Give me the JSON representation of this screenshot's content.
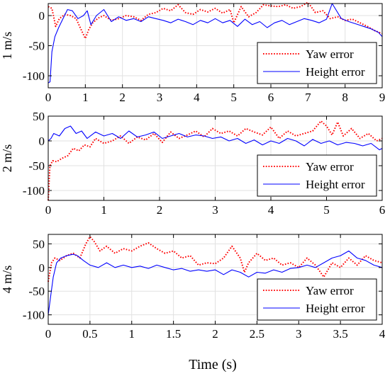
{
  "figure": {
    "xlabel": "Time (s)"
  },
  "chart_data": [
    {
      "type": "line",
      "ylabel": "1 m/s",
      "xlim": [
        0,
        9
      ],
      "ylim": [
        -120,
        20
      ],
      "xticks": [
        0,
        1,
        2,
        3,
        4,
        5,
        6,
        7,
        8,
        9
      ],
      "xtick_labels": [
        "0",
        "1",
        "2",
        "3",
        "4",
        "5",
        "6",
        "7",
        "8",
        "9"
      ],
      "yticks": [
        0,
        -50,
        -100
      ],
      "ytick_labels": [
        "0",
        "-50",
        "-100"
      ],
      "grid": true,
      "legend_position": "bottom-right",
      "series": [
        {
          "name": "Yaw error",
          "color": "#ff0000",
          "dash": "dotted",
          "x": [
            0,
            0.1,
            0.2,
            0.3,
            0.45,
            0.6,
            0.75,
            0.9,
            1.0,
            1.1,
            1.2,
            1.35,
            1.5,
            1.7,
            1.9,
            2.1,
            2.3,
            2.5,
            2.7,
            2.9,
            3.1,
            3.3,
            3.5,
            3.7,
            3.9,
            4.1,
            4.3,
            4.5,
            4.7,
            4.9,
            5.0,
            5.2,
            5.4,
            5.6,
            5.8,
            6.0,
            6.2,
            6.4,
            6.6,
            6.8,
            7.0,
            7.2,
            7.4,
            7.6,
            7.8,
            8.0,
            8.2,
            8.4,
            8.6,
            8.8,
            9.0
          ],
          "y": [
            15,
            12,
            -18,
            -5,
            2,
            0,
            -5,
            -25,
            -38,
            -22,
            -12,
            -4,
            0,
            -8,
            -5,
            0,
            -2,
            -8,
            2,
            5,
            12,
            8,
            18,
            5,
            2,
            10,
            6,
            12,
            4,
            10,
            -12,
            15,
            -2,
            5,
            18,
            16,
            15,
            18,
            12,
            15,
            22,
            5,
            8,
            -5,
            -2,
            -8,
            -6,
            -12,
            -18,
            -25,
            -30
          ]
        },
        {
          "name": "Height error",
          "color": "#0000ff",
          "dash": "solid",
          "x": [
            0,
            0.05,
            0.1,
            0.18,
            0.28,
            0.4,
            0.52,
            0.65,
            0.8,
            0.95,
            1.05,
            1.15,
            1.3,
            1.5,
            1.7,
            1.9,
            2.1,
            2.3,
            2.5,
            2.7,
            2.9,
            3.1,
            3.3,
            3.5,
            3.7,
            3.9,
            4.1,
            4.3,
            4.5,
            4.7,
            4.9,
            5.1,
            5.3,
            5.5,
            5.7,
            5.9,
            6.1,
            6.3,
            6.5,
            6.7,
            6.9,
            7.1,
            7.3,
            7.5,
            7.65,
            7.75,
            7.9,
            8.1,
            8.3,
            8.5,
            8.7,
            8.9,
            9.0
          ],
          "y": [
            -112,
            -110,
            -60,
            -35,
            -20,
            -5,
            10,
            8,
            -5,
            0,
            8,
            -15,
            0,
            10,
            -10,
            -2,
            -8,
            -5,
            -10,
            -2,
            -5,
            -8,
            -12,
            -6,
            -10,
            -15,
            -8,
            -12,
            -5,
            -12,
            -8,
            -18,
            -6,
            -15,
            -10,
            -20,
            -12,
            -8,
            -15,
            -10,
            -5,
            -8,
            -12,
            -6,
            20,
            10,
            -5,
            -10,
            -14,
            -18,
            -22,
            -28,
            -35
          ]
        }
      ]
    },
    {
      "type": "line",
      "ylabel": "2 m/s",
      "xlim": [
        0,
        6
      ],
      "ylim": [
        -120,
        50
      ],
      "xticks": [
        0,
        1,
        2,
        3,
        4,
        5,
        6
      ],
      "xtick_labels": [
        "0",
        "1",
        "2",
        "3",
        "4",
        "5",
        "6"
      ],
      "yticks": [
        50,
        0,
        -50,
        -100
      ],
      "ytick_labels": [
        "50",
        "0",
        "-50",
        "-100"
      ],
      "grid": true,
      "legend_position": "bottom-right",
      "series": [
        {
          "name": "Yaw error",
          "color": "#ff0000",
          "dash": "dotted",
          "x": [
            0,
            0.03,
            0.08,
            0.15,
            0.25,
            0.35,
            0.45,
            0.55,
            0.65,
            0.75,
            0.85,
            1.0,
            1.15,
            1.3,
            1.45,
            1.6,
            1.75,
            1.9,
            2.05,
            2.2,
            2.35,
            2.5,
            2.65,
            2.8,
            2.95,
            3.1,
            3.25,
            3.4,
            3.55,
            3.7,
            3.85,
            4.0,
            4.15,
            4.3,
            4.45,
            4.6,
            4.75,
            4.9,
            5.0,
            5.1,
            5.2,
            5.3,
            5.45,
            5.6,
            5.75,
            5.9,
            6.0
          ],
          "y": [
            -120,
            -50,
            -40,
            -42,
            -35,
            -30,
            -15,
            -20,
            -8,
            -12,
            5,
            -5,
            0,
            10,
            -5,
            8,
            2,
            15,
            -3,
            18,
            5,
            12,
            20,
            8,
            25,
            15,
            20,
            10,
            25,
            18,
            12,
            28,
            5,
            20,
            10,
            15,
            20,
            40,
            30,
            12,
            38,
            10,
            25,
            5,
            15,
            0,
            5
          ]
        },
        {
          "name": "Height error",
          "color": "#0000ff",
          "dash": "solid",
          "x": [
            0,
            0.05,
            0.1,
            0.2,
            0.3,
            0.4,
            0.5,
            0.6,
            0.7,
            0.85,
            1.0,
            1.15,
            1.3,
            1.45,
            1.6,
            1.75,
            1.9,
            2.05,
            2.2,
            2.35,
            2.5,
            2.65,
            2.8,
            2.95,
            3.1,
            3.25,
            3.4,
            3.55,
            3.7,
            3.85,
            4.0,
            4.15,
            4.3,
            4.45,
            4.6,
            4.75,
            4.9,
            5.05,
            5.2,
            5.35,
            5.5,
            5.65,
            5.8,
            5.95,
            6.0
          ],
          "y": [
            0,
            5,
            15,
            10,
            25,
            30,
            15,
            20,
            5,
            18,
            10,
            15,
            5,
            20,
            8,
            12,
            18,
            5,
            10,
            15,
            8,
            12,
            10,
            5,
            8,
            0,
            5,
            -5,
            2,
            -8,
            0,
            -5,
            5,
            0,
            -10,
            3,
            -5,
            0,
            -8,
            -3,
            -5,
            -10,
            -5,
            -18,
            -15
          ]
        }
      ]
    },
    {
      "type": "line",
      "ylabel": "4 m/s",
      "xlim": [
        0,
        4
      ],
      "ylim": [
        -120,
        70
      ],
      "xticks": [
        0,
        0.5,
        1,
        1.5,
        2,
        2.5,
        3,
        3.5,
        4
      ],
      "xtick_labels": [
        "0",
        "0.5",
        "1",
        "1.5",
        "2",
        "2.5",
        "3",
        "3.5",
        "4"
      ],
      "yticks": [
        50,
        0,
        -50,
        -100
      ],
      "ytick_labels": [
        "50",
        "0",
        "-50",
        "-100"
      ],
      "grid": true,
      "legend_position": "bottom-right",
      "series": [
        {
          "name": "Yaw error",
          "color": "#ff0000",
          "dash": "dotted",
          "x": [
            0,
            0.04,
            0.08,
            0.14,
            0.22,
            0.3,
            0.38,
            0.45,
            0.5,
            0.55,
            0.62,
            0.7,
            0.8,
            0.9,
            1.0,
            1.1,
            1.2,
            1.3,
            1.4,
            1.5,
            1.6,
            1.7,
            1.8,
            1.9,
            2.0,
            2.1,
            2.2,
            2.3,
            2.35,
            2.4,
            2.5,
            2.6,
            2.7,
            2.8,
            2.9,
            3.0,
            3.1,
            3.2,
            3.3,
            3.4,
            3.5,
            3.6,
            3.7,
            3.8,
            3.9,
            4.0
          ],
          "y": [
            -30,
            10,
            20,
            15,
            25,
            30,
            20,
            50,
            65,
            55,
            35,
            45,
            30,
            40,
            35,
            45,
            52,
            40,
            30,
            35,
            20,
            25,
            5,
            10,
            8,
            20,
            45,
            20,
            -10,
            10,
            30,
            15,
            20,
            5,
            10,
            0,
            20,
            5,
            -20,
            10,
            0,
            20,
            5,
            25,
            15,
            10
          ]
        },
        {
          "name": "Height error",
          "color": "#0000ff",
          "dash": "solid",
          "x": [
            0,
            0.03,
            0.06,
            0.1,
            0.15,
            0.22,
            0.3,
            0.35,
            0.42,
            0.5,
            0.6,
            0.7,
            0.8,
            0.9,
            1.0,
            1.1,
            1.2,
            1.3,
            1.4,
            1.5,
            1.6,
            1.7,
            1.8,
            1.9,
            2.0,
            2.1,
            2.2,
            2.3,
            2.4,
            2.5,
            2.6,
            2.7,
            2.8,
            2.9,
            3.0,
            3.1,
            3.2,
            3.3,
            3.4,
            3.5,
            3.6,
            3.7,
            3.8,
            3.9,
            4.0
          ],
          "y": [
            -100,
            -60,
            -20,
            10,
            20,
            25,
            28,
            25,
            15,
            5,
            0,
            10,
            0,
            5,
            0,
            3,
            -2,
            5,
            0,
            -5,
            -2,
            -8,
            -5,
            -8,
            -5,
            -15,
            -5,
            -10,
            -20,
            -10,
            -12,
            -5,
            -10,
            -2,
            0,
            5,
            0,
            10,
            20,
            25,
            35,
            20,
            15,
            5,
            0
          ]
        }
      ]
    }
  ]
}
